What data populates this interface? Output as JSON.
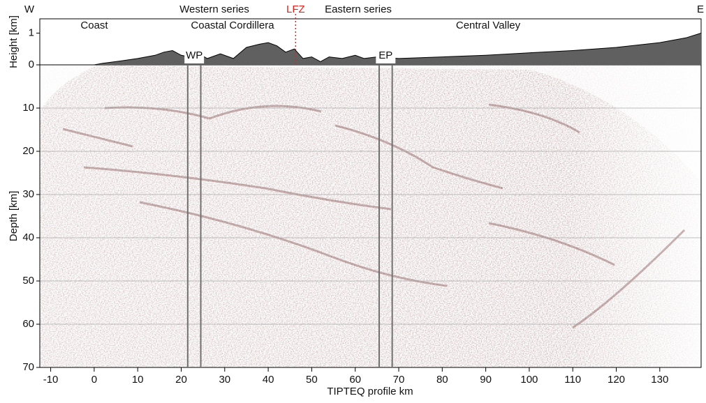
{
  "chart_data": {
    "type": "seismic-profile",
    "x_label": "TIPTEQ profile km",
    "xlim": [
      -12.5,
      139.5
    ],
    "xticks": [
      -10,
      0,
      10,
      20,
      30,
      40,
      50,
      60,
      70,
      80,
      90,
      100,
      110,
      120,
      130
    ],
    "top_panel": {
      "type": "area",
      "y_label": "Height [km]",
      "ylim": [
        0,
        1.45
      ],
      "yticks": [
        0,
        1
      ],
      "color": "#606060",
      "x": [
        -12.5,
        0,
        2,
        6,
        10,
        14,
        16,
        18,
        20,
        22,
        24,
        26,
        29,
        32,
        35,
        38,
        40,
        42,
        44,
        46,
        48,
        50,
        52,
        54,
        57,
        60,
        62,
        65,
        70,
        80,
        90,
        100,
        110,
        120,
        130,
        136,
        139.5
      ],
      "values": [
        0,
        0,
        0.05,
        0.12,
        0.2,
        0.3,
        0.4,
        0.45,
        0.3,
        0.25,
        0.35,
        0.2,
        0.35,
        0.2,
        0.55,
        0.65,
        0.7,
        0.6,
        0.4,
        0.5,
        0.2,
        0.25,
        0.1,
        0.25,
        0.2,
        0.3,
        0.2,
        0.25,
        0.2,
        0.25,
        0.3,
        0.38,
        0.45,
        0.55,
        0.7,
        0.85,
        1.0
      ]
    },
    "bottom_panel": {
      "type": "image",
      "y_label": "Depth [km]",
      "ylim": [
        0,
        70
      ],
      "yticks": [
        10,
        20,
        30,
        40,
        50,
        60,
        70
      ],
      "grid": true
    },
    "annotations": [
      {
        "label": "WP",
        "x": [
          21.5,
          24.5
        ],
        "color": "#707070"
      },
      {
        "label": "EP",
        "x": [
          65.5,
          68.5
        ],
        "color": "#707070"
      }
    ],
    "fault": {
      "label": "LFZ",
      "x": 46.3,
      "color": "#e8201a"
    },
    "top_labels": [
      "W",
      "Western series",
      "Eastern series",
      "E"
    ],
    "region_labels": [
      "Coast",
      "Coastal Cordillera",
      "Central Valley"
    ]
  }
}
